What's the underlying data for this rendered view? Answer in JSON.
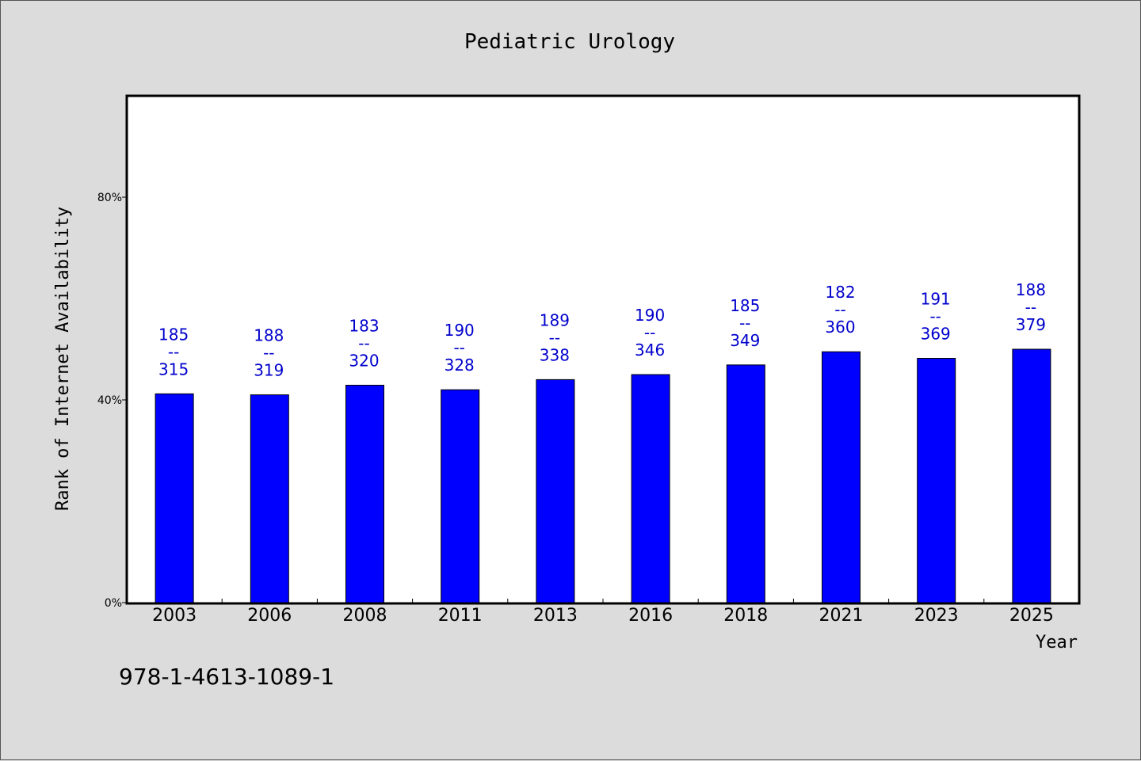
{
  "chart_data": {
    "type": "bar",
    "title": "Pediatric Urology",
    "xlabel": "Year",
    "ylabel": "Rank of Internet Availability",
    "categories": [
      "2003",
      "2006",
      "2008",
      "2011",
      "2013",
      "2016",
      "2018",
      "2021",
      "2023",
      "2025"
    ],
    "values": [
      41.2,
      41.0,
      42.9,
      42.0,
      44.0,
      45.0,
      46.9,
      49.5,
      48.2,
      50.0
    ],
    "value_unit": "%",
    "bar_labels": [
      {
        "top": "185",
        "sep": "--",
        "bottom": "315"
      },
      {
        "top": "188",
        "sep": "--",
        "bottom": "319"
      },
      {
        "top": "183",
        "sep": "--",
        "bottom": "320"
      },
      {
        "top": "190",
        "sep": "--",
        "bottom": "328"
      },
      {
        "top": "189",
        "sep": "--",
        "bottom": "338"
      },
      {
        "top": "190",
        "sep": "--",
        "bottom": "346"
      },
      {
        "top": "185",
        "sep": "--",
        "bottom": "349"
      },
      {
        "top": "182",
        "sep": "--",
        "bottom": "360"
      },
      {
        "top": "191",
        "sep": "--",
        "bottom": "369"
      },
      {
        "top": "188",
        "sep": "--",
        "bottom": "379"
      }
    ],
    "yticks": [
      0,
      40,
      80
    ],
    "ytick_labels": [
      "0%",
      "40%",
      "80%"
    ],
    "ylim": [
      0,
      100
    ],
    "grid": false,
    "legend": "none",
    "colors": {
      "bar": "#0000ff",
      "label": "#0000cc",
      "background": "#dcdcdc",
      "plot_area": "#ffffff"
    }
  },
  "footer": {
    "isbn": "978-1-4613-1089-1"
  }
}
